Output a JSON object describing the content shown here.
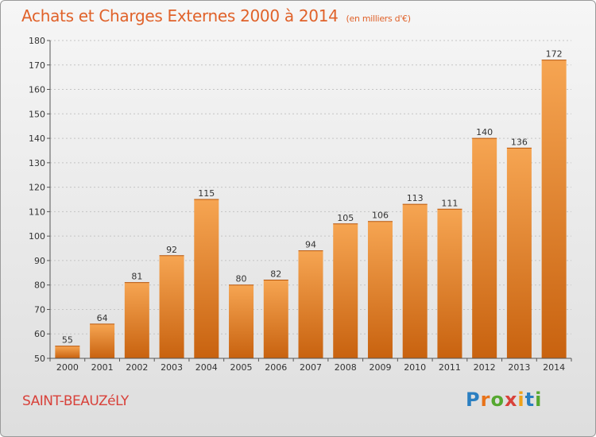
{
  "header": {
    "title": "Achats et Charges Externes 2000 à 2014",
    "subtitle": "(en milliers d'€)"
  },
  "footer": {
    "commune": "SAINT-BEAUZéLY",
    "logo_letters": [
      {
        "char": "P",
        "color": "#2b7fc1"
      },
      {
        "char": "r",
        "color": "#e8731a"
      },
      {
        "char": "o",
        "color": "#56a830"
      },
      {
        "char": "x",
        "color": "#d8413a"
      },
      {
        "char": "i",
        "color": "#f0a21a"
      },
      {
        "char": "t",
        "color": "#2b7fc1"
      },
      {
        "char": "i",
        "color": "#56a830"
      }
    ]
  },
  "chart_data": {
    "type": "bar",
    "categories": [
      "2000",
      "2001",
      "2002",
      "2003",
      "2004",
      "2005",
      "2006",
      "2007",
      "2008",
      "2009",
      "2010",
      "2011",
      "2012",
      "2013",
      "2014"
    ],
    "values": [
      55,
      64,
      81,
      92,
      115,
      80,
      82,
      94,
      105,
      106,
      113,
      111,
      140,
      136,
      172
    ],
    "title": "Achats et Charges Externes 2000 à 2014",
    "xlabel": "",
    "ylabel": "",
    "ylim": [
      50,
      180
    ],
    "yticks": [
      50,
      60,
      70,
      80,
      90,
      100,
      110,
      120,
      130,
      140,
      150,
      160,
      170,
      180
    ],
    "grid": true,
    "bar_color_top": "#f6a552",
    "bar_color_bottom": "#c8620f"
  }
}
